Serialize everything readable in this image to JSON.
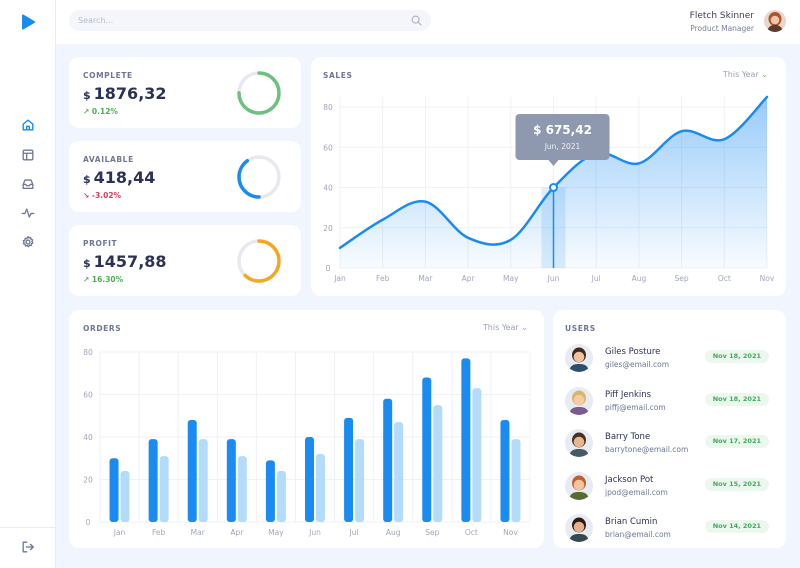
{
  "header": {
    "search_placeholder": "Search...",
    "user_name": "Fletch Skinner",
    "user_role": "Product Manager"
  },
  "sidebar": {
    "items": [
      {
        "icon": "home-icon"
      },
      {
        "icon": "layout-icon"
      },
      {
        "icon": "inbox-icon"
      },
      {
        "icon": "activity-icon"
      },
      {
        "icon": "gear-icon"
      }
    ],
    "logout_icon": "logout-icon"
  },
  "colors": {
    "accent": "#1a8cf1",
    "accent_light": "#b3dcfb",
    "complete_ring": "#6cc17e",
    "available_ring": "#1a8cf1",
    "profit_ring": "#f5a623",
    "positive": "#4caf50",
    "negative": "#e53960"
  },
  "stats": {
    "complete": {
      "label": "COMPLETE",
      "currency": "$",
      "value": "1876,32",
      "change": "0.12%",
      "progress": 0.75
    },
    "available": {
      "label": "AVAILABLE",
      "currency": "$",
      "value": "418,44",
      "change": "-3.02%",
      "progress": 0.4
    },
    "profit": {
      "label": "PROFIT",
      "currency": "$",
      "value": "1457,88",
      "change": "16.30%",
      "progress": 0.62
    }
  },
  "sales": {
    "title": "SALES",
    "period": "This Year",
    "tooltip_value": "$ 675,42",
    "tooltip_date": "Jun, 2021"
  },
  "orders": {
    "title": "ORDERS",
    "period": "This Year"
  },
  "users": {
    "title": "USERS",
    "list": [
      {
        "name": "Giles Posture",
        "email": "giles@email.com",
        "date": "Nov 18, 2021"
      },
      {
        "name": "Piff Jenkins",
        "email": "piffj@email.com",
        "date": "Nov 18, 2021"
      },
      {
        "name": "Barry Tone",
        "email": "barrytone@email.com",
        "date": "Nov 17, 2021"
      },
      {
        "name": "Jackson Pot",
        "email": "jpod@email.com",
        "date": "Nov 15, 2021"
      },
      {
        "name": "Brian Cumin",
        "email": "brian@email.com",
        "date": "Nov 14, 2021"
      }
    ]
  },
  "chart_data": [
    {
      "type": "area",
      "title": "SALES",
      "categories": [
        "Jan",
        "Feb",
        "Mar",
        "Apr",
        "May",
        "Jun",
        "Jul",
        "Aug",
        "Sep",
        "Oct",
        "Nov"
      ],
      "series": [
        {
          "values": [
            10,
            24,
            33,
            15,
            14,
            40,
            57,
            52,
            68,
            64,
            85
          ]
        }
      ],
      "y_ticks": [
        0,
        20,
        40,
        60,
        80
      ],
      "ylim": [
        0,
        85
      ],
      "highlight": {
        "category": "Jun",
        "value": 40
      },
      "grid": true
    },
    {
      "type": "bar",
      "title": "ORDERS",
      "categories": [
        "Jan",
        "Feb",
        "Mar",
        "Apr",
        "May",
        "Jun",
        "Jul",
        "Aug",
        "Sep",
        "Oct",
        "Nov"
      ],
      "series": [
        {
          "values": [
            30,
            39,
            48,
            39,
            29,
            40,
            49,
            58,
            68,
            77,
            48
          ]
        },
        {
          "values": [
            24,
            31,
            39,
            31,
            24,
            32,
            39,
            47,
            55,
            63,
            39
          ]
        }
      ],
      "y_ticks": [
        0,
        20,
        40,
        60,
        80
      ],
      "ylim": [
        0,
        80
      ],
      "grid": true
    }
  ]
}
